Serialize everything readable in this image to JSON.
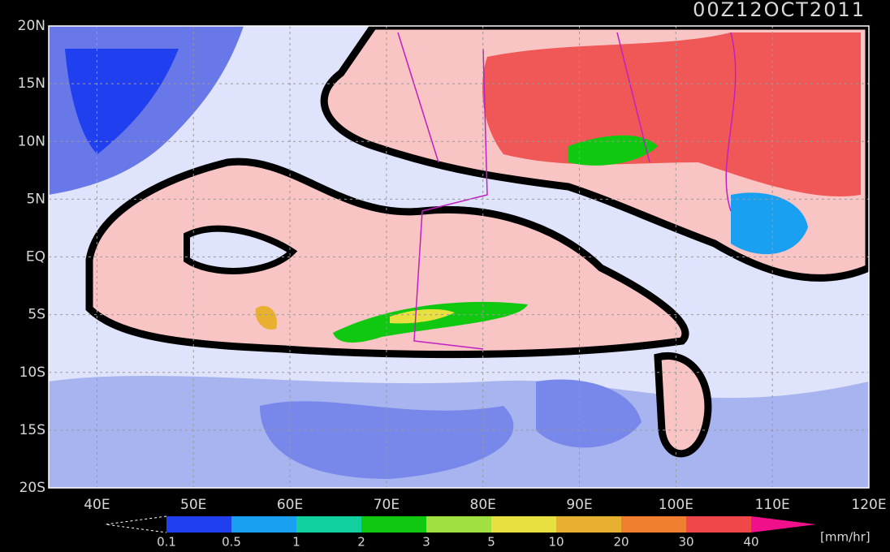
{
  "title": "00Z12OCT2011",
  "map": {
    "lonlim": [
      35,
      120
    ],
    "latlim": [
      -20,
      20
    ],
    "lonticks": [
      {
        "value": 40,
        "label": "40E"
      },
      {
        "value": 50,
        "label": "50E"
      },
      {
        "value": 60,
        "label": "60E"
      },
      {
        "value": 70,
        "label": "70E"
      },
      {
        "value": 80,
        "label": "80E"
      },
      {
        "value": 90,
        "label": "90E"
      },
      {
        "value": 100,
        "label": "100E"
      },
      {
        "value": 110,
        "label": "110E"
      },
      {
        "value": 120,
        "label": "120E"
      }
    ],
    "latticks": [
      {
        "value": 20,
        "label": "20N"
      },
      {
        "value": 15,
        "label": "15N"
      },
      {
        "value": 10,
        "label": "10N"
      },
      {
        "value": 5,
        "label": "5N"
      },
      {
        "value": 0,
        "label": "EQ"
      },
      {
        "value": -5,
        "label": "5S"
      },
      {
        "value": -10,
        "label": "10S"
      },
      {
        "value": -15,
        "label": "15S"
      },
      {
        "value": -20,
        "label": "20S"
      }
    ],
    "grid": true
  },
  "colorbar": {
    "levels": [
      0.1,
      0.5,
      1,
      2,
      3,
      5,
      10,
      20,
      30,
      40
    ],
    "colors": [
      "#2040f0",
      "#1aa0f0",
      "#10d0a0",
      "#10c810",
      "#a0e040",
      "#e8e040",
      "#e8b030",
      "#f08030",
      "#f04848"
    ],
    "over_color": "#f0108c",
    "unit": "[mm/hr]"
  }
}
